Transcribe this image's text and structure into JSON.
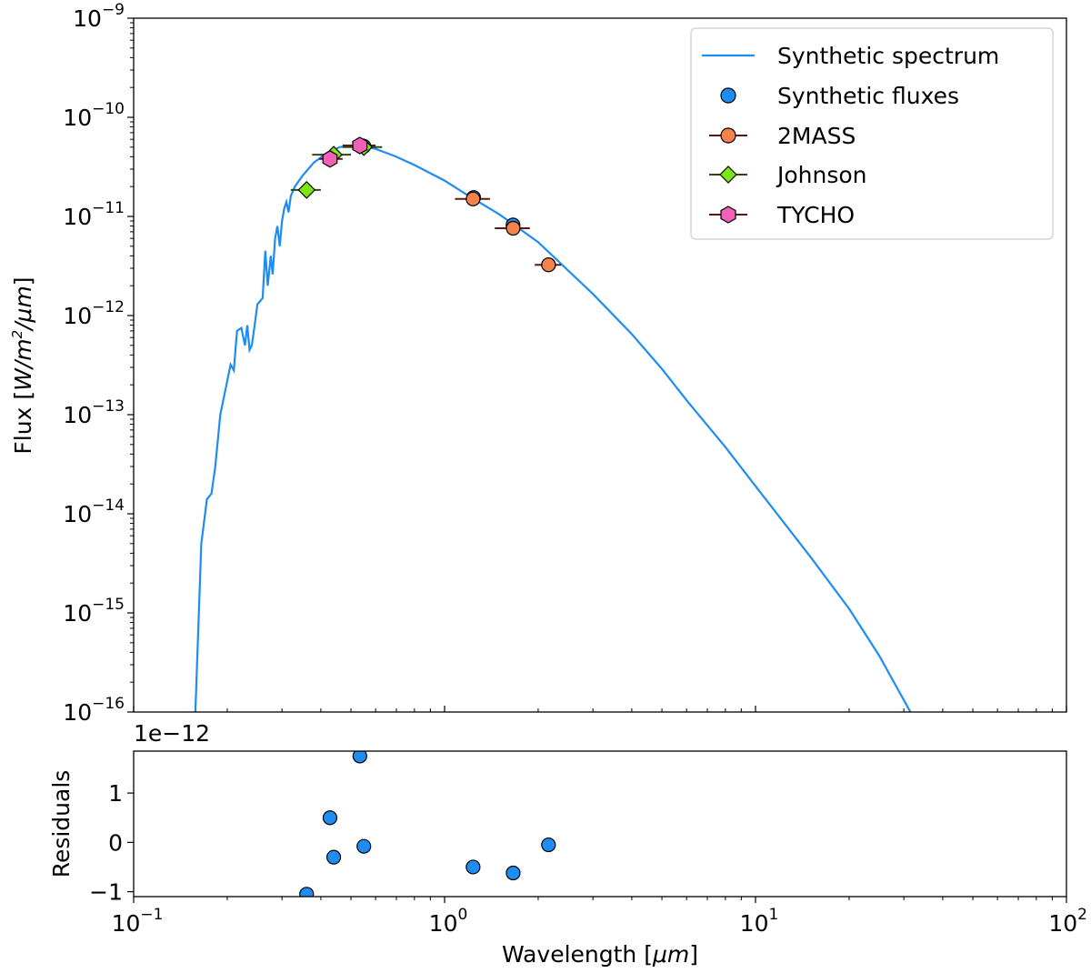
{
  "chart_data": [
    {
      "type": "line",
      "panel": "main",
      "title": "",
      "xlabel": "",
      "ylabel_text": "Flux [",
      "ylabel_units": "W/m",
      "ylabel_units_exp": "2",
      "ylabel_units_tail": "/μm",
      "ylabel_close": "]",
      "xscale": "log",
      "yscale": "log",
      "xlim": [
        0.1,
        100
      ],
      "ylim": [
        1e-16,
        1e-09
      ],
      "y_tick_base": "10",
      "y_tick_exponents": [
        "−9",
        "−10",
        "−11",
        "−12",
        "−13",
        "−14",
        "−15",
        "−16"
      ],
      "y_tick_values": [
        1e-09,
        1e-10,
        1e-11,
        1e-12,
        1e-13,
        1e-14,
        1e-15,
        1e-16
      ],
      "series": [
        {
          "name": "Synthetic spectrum",
          "kind": "line",
          "color": "#1e8cf0",
          "x": [
            0.158,
            0.165,
            0.172,
            0.178,
            0.183,
            0.19,
            0.2,
            0.205,
            0.21,
            0.215,
            0.222,
            0.228,
            0.232,
            0.236,
            0.24,
            0.245,
            0.25,
            0.26,
            0.265,
            0.27,
            0.276,
            0.28,
            0.285,
            0.29,
            0.295,
            0.3,
            0.305,
            0.31,
            0.315,
            0.32,
            0.33,
            0.35,
            0.38,
            0.42,
            0.46,
            0.5,
            0.55,
            0.6,
            0.7,
            0.8,
            1.0,
            1.2,
            1.5,
            2.0,
            3.0,
            4.0,
            5.0,
            6.0,
            8.0,
            10.0,
            15.0,
            20.0,
            25.0,
            31.5
          ],
          "y": [
            1e-16,
            5e-15,
            1.4e-14,
            1.6e-14,
            3e-14,
            1e-13,
            2.2e-13,
            3.2e-13,
            2.8e-13,
            7e-13,
            7.5e-13,
            5e-13,
            8e-13,
            4.5e-13,
            5e-13,
            8e-13,
            1.3e-12,
            1.5e-12,
            4.5e-12,
            2e-12,
            4e-12,
            2.6e-12,
            6e-12,
            8e-12,
            5e-12,
            9e-12,
            1.2e-11,
            1.4e-11,
            1.1e-11,
            1.6e-11,
            2e-11,
            2.6e-11,
            3.5e-11,
            4.4e-11,
            5e-11,
            5.2e-11,
            5.1e-11,
            4.8e-11,
            4e-11,
            3.3e-11,
            2.3e-11,
            1.6e-11,
            1.05e-11,
            5.5e-12,
            1.65e-12,
            6.5e-13,
            2.9e-13,
            1.4e-13,
            4.7e-14,
            1.9e-14,
            3.7e-15,
            1.1e-15,
            3.7e-16,
            1e-16
          ]
        },
        {
          "name": "Synthetic fluxes",
          "kind": "marker",
          "marker": "circle",
          "color": "#1e8cf0",
          "x": [
            0.55,
            1.24,
            1.66,
            2.16
          ],
          "y": [
            5.1e-11,
            1.55e-11,
            8.2e-12,
            3.25e-12
          ]
        },
        {
          "name": "2MASS",
          "kind": "errorbar",
          "marker": "circle",
          "color": "#f5824b",
          "x": [
            1.235,
            1.662,
            2.159
          ],
          "y": [
            1.5e-11,
            7.6e-12,
            3.25e-12
          ],
          "xerr_lo": [
            1.08,
            1.45,
            1.95
          ],
          "xerr_hi": [
            1.4,
            1.88,
            2.37
          ]
        },
        {
          "name": "Johnson",
          "kind": "errorbar",
          "marker": "diamond",
          "color": "#7de613",
          "x": [
            0.36,
            0.44,
            0.55
          ],
          "y": [
            1.85e-11,
            4.2e-11,
            5e-11
          ],
          "xerr_lo": [
            0.32,
            0.375,
            0.47
          ],
          "xerr_hi": [
            0.4,
            0.5,
            0.63
          ]
        },
        {
          "name": "TYCHO",
          "kind": "errorbar",
          "marker": "hexagon",
          "color": "#f261b5",
          "x": [
            0.428,
            0.534
          ],
          "y": [
            3.8e-11,
            5.2e-11
          ],
          "xerr_lo": [
            0.395,
            0.47
          ],
          "xerr_hi": [
            0.47,
            0.6
          ]
        }
      ],
      "legend_position": "upper-right"
    },
    {
      "type": "scatter",
      "panel": "residuals",
      "xlabel_text": "Wavelength [",
      "xlabel_units": "μm",
      "xlabel_close": "]",
      "ylabel": "Residuals",
      "offset_label": "1e−12",
      "xscale": "log",
      "xlim": [
        0.1,
        100
      ],
      "ylim": [
        -1.1,
        1.85
      ],
      "x_tick_base": "10",
      "x_tick_exponents": [
        "−1",
        "0",
        "1",
        "2"
      ],
      "x_tick_values": [
        0.1,
        1,
        10,
        100
      ],
      "y_tick_labels": [
        "1",
        "0",
        "−1"
      ],
      "y_tick_values": [
        1,
        0,
        -1
      ],
      "series": [
        {
          "name": "Residuals",
          "color": "#1e8cf0",
          "x": [
            0.36,
            0.428,
            0.44,
            0.534,
            0.55,
            1.235,
            1.662,
            2.159
          ],
          "y": [
            -1.05,
            0.5,
            -0.3,
            1.75,
            -0.08,
            -0.5,
            -0.62,
            -0.05
          ]
        }
      ]
    }
  ]
}
